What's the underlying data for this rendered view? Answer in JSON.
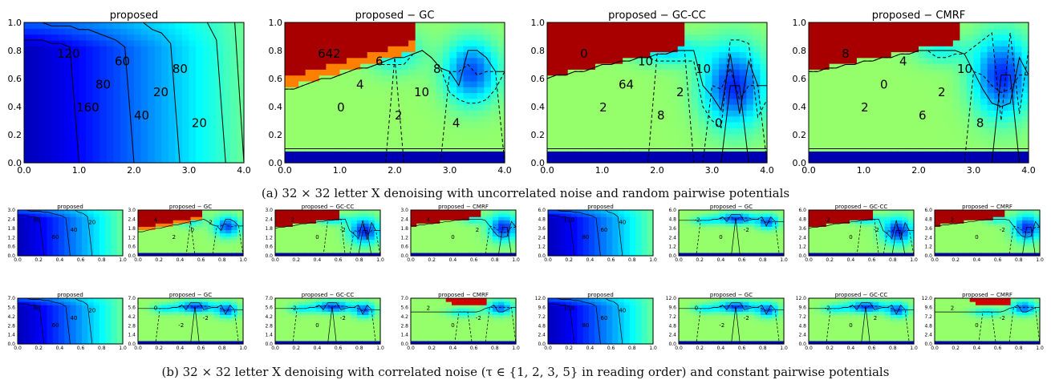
{
  "captions": {
    "a": "(a)  32 × 32 letter X denoising with uncorrelated noise and random pairwise potentials",
    "b": "(b)  32 × 32 letter X denoising with correlated noise (τ ∈ {1, 2, 3, 5} in reading order) and constant pairwise potentials"
  },
  "chart_data": [
    {
      "id": "a-1",
      "type": "heatmap",
      "title": "proposed",
      "kind": "proposed",
      "xlim": [
        0,
        4
      ],
      "ylim": [
        0,
        1
      ],
      "xticks": [
        "0.0",
        "1.0",
        "2.0",
        "3.0",
        "4.0"
      ],
      "yticks": [
        "0.0",
        "0.2",
        "0.4",
        "0.6",
        "0.8",
        "1.0"
      ],
      "contour_labels": [
        "120",
        "160",
        "80",
        "60",
        "40",
        "20",
        "80",
        "20"
      ]
    },
    {
      "id": "a-2",
      "type": "heatmap",
      "title": "proposed − GC",
      "kind": "gc",
      "xlim": [
        0,
        4
      ],
      "ylim": [
        0,
        1
      ],
      "xticks": [
        "0.0",
        "1.0",
        "2.0",
        "3.0",
        "4.0"
      ],
      "yticks": [
        "0.0",
        "0.2",
        "0.4",
        "0.6",
        "0.8",
        "1.0"
      ],
      "contour_labels": [
        "642",
        "0",
        "4",
        "6",
        "2",
        "10",
        "8",
        "4"
      ]
    },
    {
      "id": "a-3",
      "type": "heatmap",
      "title": "proposed − GC-CC",
      "kind": "gccc",
      "xlim": [
        0,
        4
      ],
      "ylim": [
        0,
        1
      ],
      "xticks": [
        "0.0",
        "1.0",
        "2.0",
        "3.0",
        "4.0"
      ],
      "yticks": [
        "0.0",
        "0.2",
        "0.4",
        "0.6",
        "0.8",
        "1.0"
      ],
      "contour_labels": [
        "0",
        "2",
        "64",
        "10",
        "8",
        "2",
        "10",
        "0"
      ]
    },
    {
      "id": "a-4",
      "type": "heatmap",
      "title": "proposed − CMRF",
      "kind": "cmrf",
      "xlim": [
        0,
        4
      ],
      "ylim": [
        0,
        1
      ],
      "xticks": [
        "0.0",
        "1.0",
        "2.0",
        "3.0",
        "4.0"
      ],
      "yticks": [
        "0.0",
        "0.2",
        "0.4",
        "0.6",
        "0.8",
        "1.0"
      ],
      "contour_labels": [
        "8",
        "2",
        "0",
        "4",
        "6",
        "2",
        "10",
        "8"
      ]
    },
    {
      "id": "b1-1",
      "type": "heatmap",
      "title": "proposed",
      "kind": "proposed",
      "xlim": [
        0,
        1
      ],
      "ylim": [
        0,
        3
      ],
      "xticks": [
        "0.0",
        "0.2",
        "0.4",
        "0.6",
        "0.8",
        "1.0"
      ],
      "yticks": [
        "0.0",
        "0.6",
        "1.2",
        "1.8",
        "2.4",
        "3.0"
      ],
      "contour_labels": [
        "80",
        "60",
        "40",
        "20"
      ]
    },
    {
      "id": "b1-2",
      "type": "heatmap",
      "title": "proposed − GC",
      "kind": "gc",
      "xlim": [
        0,
        1
      ],
      "ylim": [
        0,
        3
      ],
      "xticks": [
        "0.0",
        "0.2",
        "0.4",
        "0.6",
        "0.8",
        "1.0"
      ],
      "yticks": [
        "0.0",
        "0.6",
        "1.2",
        "1.8",
        "2.4",
        "3.0"
      ],
      "contour_labels": [
        "4",
        "2",
        "0",
        "2"
      ]
    },
    {
      "id": "b1-3",
      "type": "heatmap",
      "title": "proposed − GC-CC",
      "kind": "gccc",
      "xlim": [
        0,
        1
      ],
      "ylim": [
        0,
        3
      ],
      "xticks": [
        "0.0",
        "0.2",
        "0.4",
        "0.6",
        "0.8",
        "1.0"
      ],
      "yticks": [
        "0.0",
        "0.6",
        "1.2",
        "1.8",
        "2.4",
        "3.0"
      ],
      "contour_labels": [
        "2",
        "0",
        "-2"
      ]
    },
    {
      "id": "b1-4",
      "type": "heatmap",
      "title": "proposed − CMRF",
      "kind": "cmrf",
      "xlim": [
        0,
        1
      ],
      "ylim": [
        0,
        3
      ],
      "xticks": [
        "0.0",
        "0.2",
        "0.4",
        "0.6",
        "0.8",
        "1.0"
      ],
      "yticks": [
        "0.0",
        "0.6",
        "1.2",
        "1.8",
        "2.4",
        "3.0"
      ],
      "contour_labels": [
        "4",
        "0",
        "2"
      ]
    },
    {
      "id": "b2-1",
      "type": "heatmap",
      "title": "proposed",
      "kind": "proposed",
      "xlim": [
        0,
        1
      ],
      "ylim": [
        0,
        6
      ],
      "xticks": [
        "0.0",
        "0.2",
        "0.4",
        "0.6",
        "0.8",
        "1.0"
      ],
      "yticks": [
        "0.0",
        "1.2",
        "2.4",
        "3.6",
        "4.8",
        "6.0"
      ],
      "contour_labels": [
        "100",
        "80",
        "60",
        "40"
      ]
    },
    {
      "id": "b2-2",
      "type": "heatmap",
      "title": "proposed − GC",
      "kind": "gc2",
      "xlim": [
        0,
        1
      ],
      "ylim": [
        0,
        6
      ],
      "xticks": [
        "0.0",
        "0.2",
        "0.4",
        "0.6",
        "0.8",
        "1.0"
      ],
      "yticks": [
        "0.0",
        "1.2",
        "2.4",
        "3.6",
        "4.8",
        "6.0"
      ],
      "contour_labels": [
        "-2",
        "0",
        "-2"
      ]
    },
    {
      "id": "b2-3",
      "type": "heatmap",
      "title": "proposed − GC-CC",
      "kind": "gccc",
      "xlim": [
        0,
        1
      ],
      "ylim": [
        0,
        6
      ],
      "xticks": [
        "0.0",
        "0.2",
        "0.4",
        "0.6",
        "0.8",
        "1.0"
      ],
      "yticks": [
        "0.0",
        "1.2",
        "2.4",
        "3.6",
        "4.8",
        "6.0"
      ],
      "contour_labels": [
        "-2",
        "0",
        "-2"
      ]
    },
    {
      "id": "b2-4",
      "type": "heatmap",
      "title": "proposed − CMRF",
      "kind": "cmrf",
      "xlim": [
        0,
        1
      ],
      "ylim": [
        0,
        6
      ],
      "xticks": [
        "0.0",
        "0.2",
        "0.4",
        "0.6",
        "0.8",
        "1.0"
      ],
      "yticks": [
        "0.0",
        "1.2",
        "2.4",
        "3.6",
        "4.8",
        "6.0"
      ],
      "contour_labels": [
        "2",
        "0",
        "-2"
      ]
    },
    {
      "id": "b3-1",
      "type": "heatmap",
      "title": "proposed",
      "kind": "proposed",
      "xlim": [
        0,
        1
      ],
      "ylim": [
        0,
        7
      ],
      "xticks": [
        "0.0",
        "0.2",
        "0.4",
        "0.6",
        "0.8",
        "1.0"
      ],
      "yticks": [
        "0.0",
        "1.4",
        "2.8",
        "4.2",
        "5.6",
        "7.0"
      ],
      "contour_labels": [
        "80",
        "60",
        "40",
        "20"
      ]
    },
    {
      "id": "b3-2",
      "type": "heatmap",
      "title": "proposed − GC",
      "kind": "gc2",
      "xlim": [
        0,
        1
      ],
      "ylim": [
        0,
        7
      ],
      "xticks": [
        "0.0",
        "0.2",
        "0.4",
        "0.6",
        "0.8",
        "1.0"
      ],
      "yticks": [
        "0.0",
        "1.4",
        "2.8",
        "4.2",
        "5.6",
        "7.0"
      ],
      "contour_labels": [
        "0",
        "-2",
        "-2"
      ]
    },
    {
      "id": "b3-3",
      "type": "heatmap",
      "title": "proposed − GC-CC",
      "kind": "gc2",
      "xlim": [
        0,
        1
      ],
      "ylim": [
        0,
        7
      ],
      "xticks": [
        "0.0",
        "0.2",
        "0.4",
        "0.6",
        "0.8",
        "1.0"
      ],
      "yticks": [
        "0.0",
        "1.4",
        "2.8",
        "4.2",
        "5.6",
        "7.0"
      ],
      "contour_labels": [
        "-2",
        "0",
        "-2"
      ]
    },
    {
      "id": "b3-4",
      "type": "heatmap",
      "title": "proposed − CMRF",
      "kind": "cmrf2",
      "xlim": [
        0,
        1
      ],
      "ylim": [
        0,
        7
      ],
      "xticks": [
        "0.0",
        "0.2",
        "0.4",
        "0.6",
        "0.8",
        "1.0"
      ],
      "yticks": [
        "0.0",
        "1.4",
        "2.8",
        "4.2",
        "5.6",
        "7.0"
      ],
      "contour_labels": [
        "2",
        "0",
        "-2"
      ]
    },
    {
      "id": "b4-1",
      "type": "heatmap",
      "title": "proposed",
      "kind": "proposed",
      "xlim": [
        0,
        1
      ],
      "ylim": [
        0,
        12
      ],
      "xticks": [
        "0.0",
        "0.2",
        "0.4",
        "0.6",
        "0.8",
        "1.0"
      ],
      "yticks": [
        "0.0",
        "2.4",
        "4.8",
        "7.2",
        "9.6",
        "12.0"
      ],
      "contour_labels": [
        "100",
        "80",
        "60",
        "40"
      ]
    },
    {
      "id": "b4-2",
      "type": "heatmap",
      "title": "proposed − GC",
      "kind": "gc2",
      "xlim": [
        0,
        1
      ],
      "ylim": [
        0,
        12
      ],
      "xticks": [
        "0.0",
        "0.2",
        "0.4",
        "0.6",
        "0.8",
        "1.0"
      ],
      "yticks": [
        "0.0",
        "2.4",
        "4.8",
        "7.2",
        "9.6",
        "12.0"
      ],
      "contour_labels": [
        "0",
        "-2",
        "-2"
      ]
    },
    {
      "id": "b4-3",
      "type": "heatmap",
      "title": "proposed − GC-CC",
      "kind": "gc2",
      "xlim": [
        0,
        1
      ],
      "ylim": [
        0,
        12
      ],
      "xticks": [
        "0.0",
        "0.2",
        "0.4",
        "0.6",
        "0.8",
        "1.0"
      ],
      "yticks": [
        "0.0",
        "2.4",
        "4.8",
        "7.2",
        "9.6",
        "12.0"
      ],
      "contour_labels": [
        "-2",
        "0",
        "2"
      ]
    },
    {
      "id": "b4-4",
      "type": "heatmap",
      "title": "proposed − CMRF",
      "kind": "cmrf2",
      "xlim": [
        0,
        1
      ],
      "ylim": [
        0,
        12
      ],
      "xticks": [
        "0.0",
        "0.2",
        "0.4",
        "0.6",
        "0.8",
        "1.0"
      ],
      "yticks": [
        "0.0",
        "2.4",
        "4.8",
        "7.2",
        "9.6",
        "12.0"
      ],
      "contour_labels": [
        "2",
        "0",
        "-2"
      ]
    }
  ]
}
